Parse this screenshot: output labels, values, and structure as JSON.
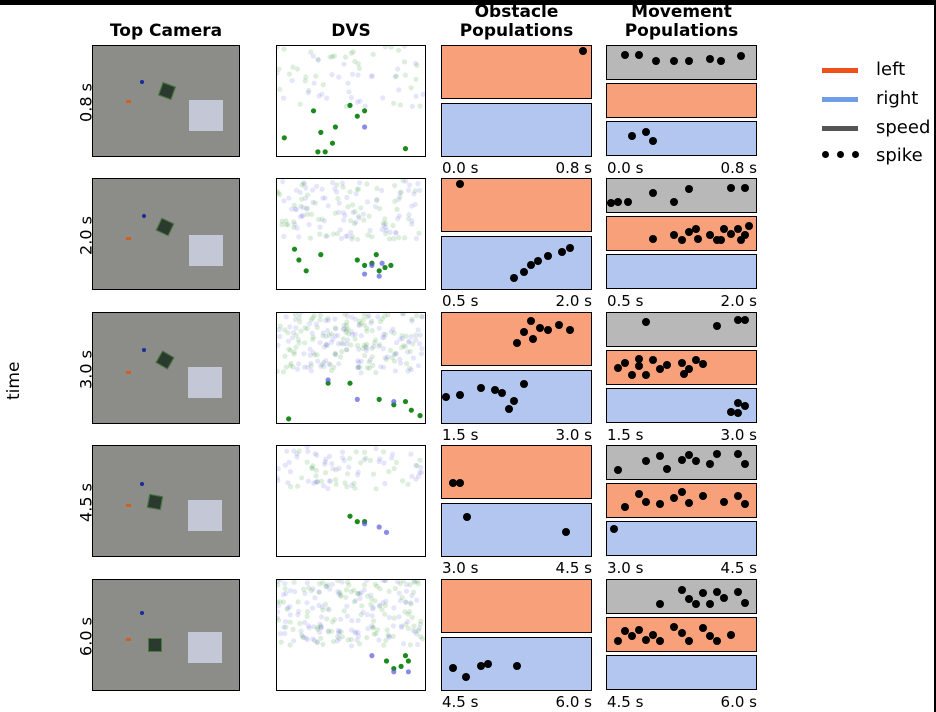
{
  "headers": {
    "top_camera": "Top Camera",
    "dvs": "DVS",
    "obstacle_line1": "Obstacle",
    "obstacle_line2": "Populations",
    "movement_line1": "Movement",
    "movement_line2": "Populations"
  },
  "axis_label": "time",
  "legend": [
    {
      "label": "left",
      "color": "#f0501a",
      "kind": "line"
    },
    {
      "label": "right",
      "color": "#6f9de8",
      "kind": "line"
    },
    {
      "label": "speed",
      "color": "#555555",
      "kind": "line"
    },
    {
      "label": "spike",
      "color": "#000000",
      "kind": "dots"
    }
  ],
  "colors": {
    "left_fill": "#f7a07a",
    "right_fill": "#b2c6ef",
    "speed_fill": "#b8b8b8",
    "dvs_green": "#1d8a1d",
    "dvs_blue": "#5a5ae0"
  },
  "rows": [
    {
      "time": "0.8 s",
      "start": "0.0 s",
      "end": "0.8 s"
    },
    {
      "time": "2.0 s",
      "start": "0.5 s",
      "end": "2.0 s"
    },
    {
      "time": "3.0 s",
      "start": "1.5 s",
      "end": "3.0 s"
    },
    {
      "time": "4.5 s",
      "start": "3.0 s",
      "end": "4.5 s"
    },
    {
      "time": "6.0 s",
      "start": "4.5 s",
      "end": "6.0 s"
    }
  ]
}
